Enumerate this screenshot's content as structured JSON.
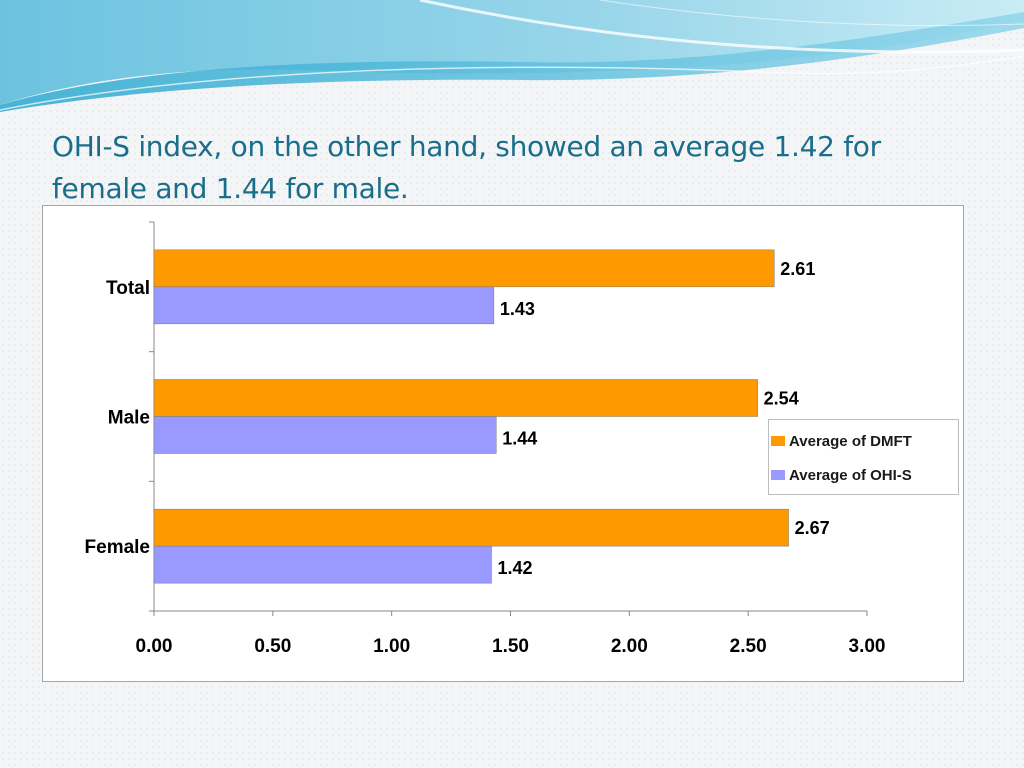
{
  "slide": {
    "title": "OHI-S  index, on the other hand, showed an average 1.42 for female  and 1.44 for male."
  },
  "colors": {
    "dmft": "#ff9900",
    "ohis": "#9999ff",
    "title": "#1a6e8a"
  },
  "chart_data": {
    "type": "bar",
    "orientation": "horizontal",
    "categories": [
      "Total",
      "Male",
      "Female"
    ],
    "series": [
      {
        "name": "Average of DMFT",
        "values": [
          2.61,
          2.54,
          2.67
        ]
      },
      {
        "name": "Average of OHI-S",
        "values": [
          1.43,
          1.44,
          1.42
        ]
      }
    ],
    "data_labels": {
      "Average of DMFT": [
        "2.61",
        "2.54",
        "2.67"
      ],
      "Average of OHI-S": [
        "1.43",
        "1.44",
        "1.42"
      ]
    },
    "xticks": [
      "0.00",
      "0.50",
      "1.00",
      "1.50",
      "2.00",
      "2.50",
      "3.00"
    ],
    "xlim": [
      0,
      3
    ],
    "grid": false,
    "legend_position": "right"
  }
}
